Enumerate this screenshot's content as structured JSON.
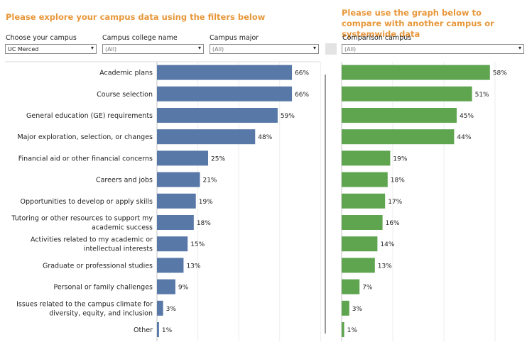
{
  "headings": {
    "left": "Please explore your campus data using the filters below",
    "right": "Please use the graph below to compare with another campus or systemwide data"
  },
  "filters": {
    "campus": {
      "label": "Choose your campus",
      "value": "UC Merced"
    },
    "college": {
      "label": "Campus college name",
      "value": "(All)"
    },
    "major": {
      "label": "Campus major",
      "value": "(All)"
    },
    "comparison": {
      "label": "Comparison campus",
      "value": "(All)"
    }
  },
  "colors": {
    "left_bar": "#5878a8",
    "right_bar": "#5fa550",
    "heading": "#e8973a"
  },
  "chart_data": [
    {
      "type": "bar",
      "orientation": "horizontal",
      "categories": [
        [
          "Academic plans"
        ],
        [
          "Course selection"
        ],
        [
          "General education (GE) requirements"
        ],
        [
          "Major exploration, selection, or changes"
        ],
        [
          "Financial aid or other financial concerns"
        ],
        [
          "Careers and jobs"
        ],
        [
          "Opportunities to develop or apply skills"
        ],
        [
          "Tutoring or other resources to support my",
          "academic success"
        ],
        [
          "Activities related to my academic or",
          "intellectual interests"
        ],
        [
          "Graduate or professional studies"
        ],
        [
          "Personal or family challenges"
        ],
        [
          "Issues related to the campus climate for",
          "diversity, equity, and inclusion"
        ],
        [
          "Other"
        ]
      ],
      "values": [
        66,
        66,
        59,
        48,
        25,
        21,
        19,
        18,
        15,
        13,
        9,
        3,
        1
      ],
      "value_labels": [
        "66%",
        "66%",
        "59%",
        "48%",
        "25%",
        "21%",
        "19%",
        "18%",
        "15%",
        "13%",
        "9%",
        "3%",
        "1%"
      ],
      "xlim": [
        0,
        100
      ],
      "grid": true
    },
    {
      "type": "bar",
      "orientation": "horizontal",
      "values": [
        58,
        51,
        45,
        44,
        19,
        18,
        17,
        16,
        14,
        13,
        7,
        3,
        1
      ],
      "value_labels": [
        "58%",
        "51%",
        "45%",
        "44%",
        "19%",
        "18%",
        "17%",
        "16%",
        "14%",
        "13%",
        "7%",
        "3%",
        "1%"
      ],
      "xlim": [
        0,
        100
      ],
      "grid": true
    }
  ]
}
